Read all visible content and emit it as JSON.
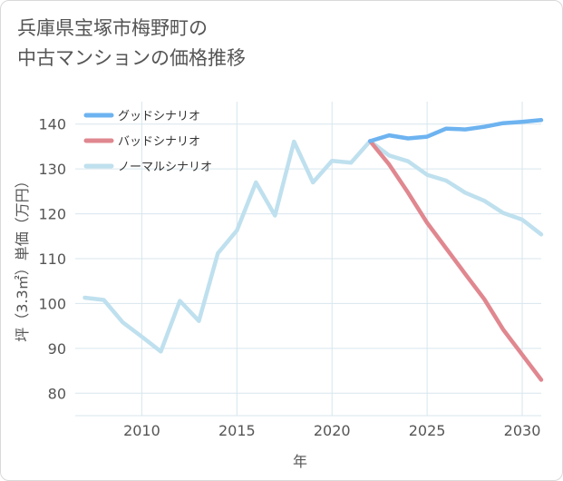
{
  "title": {
    "line1": "兵庫県宝塚市梅野町の",
    "line2": "中古マンションの価格推移"
  },
  "chart_data": {
    "type": "line",
    "title": "兵庫県宝塚市梅野町の中古マンションの価格推移",
    "xlabel": "年",
    "ylabel": "坪（3.3㎡）単価（万円）",
    "xlim": [
      2006.5,
      2031
    ],
    "ylim": [
      75,
      145
    ],
    "xticks": [
      2010,
      2015,
      2020,
      2025,
      2030
    ],
    "yticks": [
      80,
      90,
      100,
      110,
      120,
      130,
      140
    ],
    "grid": true,
    "legend_position": "top-left",
    "series": [
      {
        "name": "グッドシナリオ",
        "color": "#6db3f0",
        "x": [
          2022,
          2023,
          2024,
          2025,
          2026,
          2027,
          2028,
          2029,
          2030,
          2031
        ],
        "values": [
          136.2,
          137.5,
          136.8,
          137.2,
          139.0,
          138.8,
          139.4,
          140.2,
          140.5,
          140.9
        ]
      },
      {
        "name": "バッドシナリオ",
        "color": "#e0878f",
        "x": [
          2022,
          2023,
          2024,
          2025,
          2026,
          2027,
          2028,
          2029,
          2030,
          2031
        ],
        "values": [
          136.2,
          131.0,
          124.7,
          118.0,
          112.3,
          106.6,
          101.0,
          94.2,
          88.6,
          83.0
        ]
      },
      {
        "name": "ノーマルシナリオ",
        "color": "#bfe0ee",
        "x": [
          2007,
          2008,
          2009,
          2010,
          2011,
          2012,
          2013,
          2014,
          2015,
          2016,
          2017,
          2018,
          2019,
          2020,
          2021,
          2022,
          2023,
          2024,
          2025,
          2026,
          2027,
          2028,
          2029,
          2030,
          2031
        ],
        "values": [
          101.3,
          100.8,
          95.8,
          92.6,
          89.3,
          100.6,
          96.1,
          111.2,
          116.3,
          127.0,
          119.6,
          136.1,
          127.0,
          131.8,
          131.4,
          136.2,
          133.0,
          131.7,
          128.7,
          127.4,
          124.7,
          122.9,
          120.2,
          118.7,
          115.4
        ]
      }
    ]
  }
}
